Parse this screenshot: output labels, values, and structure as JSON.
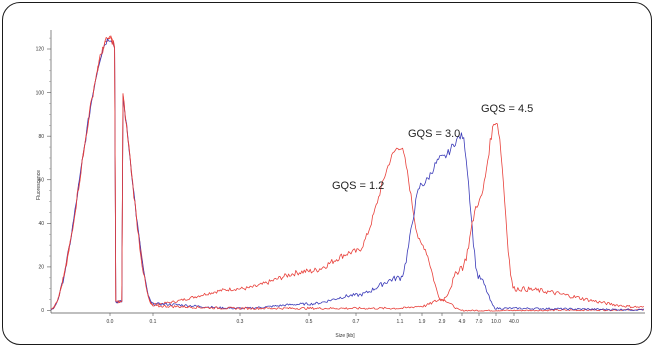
{
  "chart_data": {
    "type": "line",
    "title": "",
    "xlabel": "Size [kb]",
    "ylabel": "Fluorescence",
    "ylim": [
      0,
      125
    ],
    "y_ticks": [
      0,
      20,
      40,
      60,
      80,
      100,
      120
    ],
    "x_scale": "nonlinear (sizing ladder)",
    "x_ticks": [
      "0.0",
      "0.1",
      "0.3",
      "0.5",
      "0.7",
      "1.1",
      "1.9",
      "2.9",
      "4.9",
      "7.0",
      "10.0",
      "40.0"
    ],
    "grid": false,
    "legend": "none",
    "annotations": [
      {
        "text": "GQS = 1.2",
        "series": "red-1"
      },
      {
        "text": "GQS = 3.0",
        "series": "blue"
      },
      {
        "text": "GQS = 4.5",
        "series": "red-2"
      }
    ],
    "series_colors": {
      "red": "#e8403a",
      "blue": "#3a3ab8"
    },
    "series": [
      {
        "id": "red-1",
        "color": "#e8403a",
        "x": [
          "0.0",
          "0.1",
          "0.3",
          "0.5",
          "0.7",
          "1.1",
          "1.9",
          "2.9",
          "4.9",
          "7.0"
        ],
        "values": [
          125,
          3,
          10,
          18,
          27,
          75,
          30,
          5,
          0,
          0
        ]
      },
      {
        "id": "blue",
        "color": "#3a3ab8",
        "x": [
          "0.0",
          "0.1",
          "0.3",
          "0.5",
          "0.7",
          "1.1",
          "1.9",
          "2.9",
          "4.9",
          "7.0",
          "10.0"
        ],
        "values": [
          125,
          3,
          1,
          3,
          7,
          15,
          58,
          70,
          80,
          15,
          1
        ]
      },
      {
        "id": "red-2",
        "color": "#e8403a",
        "x": [
          "0.0",
          "0.1",
          "0.3",
          "0.5",
          "0.7",
          "1.1",
          "1.9",
          "2.9",
          "4.9",
          "7.0",
          "10.0",
          "40.0"
        ],
        "values": [
          125,
          2,
          1,
          1,
          1,
          1,
          2,
          5,
          20,
          50,
          87,
          10
        ]
      }
    ]
  }
}
